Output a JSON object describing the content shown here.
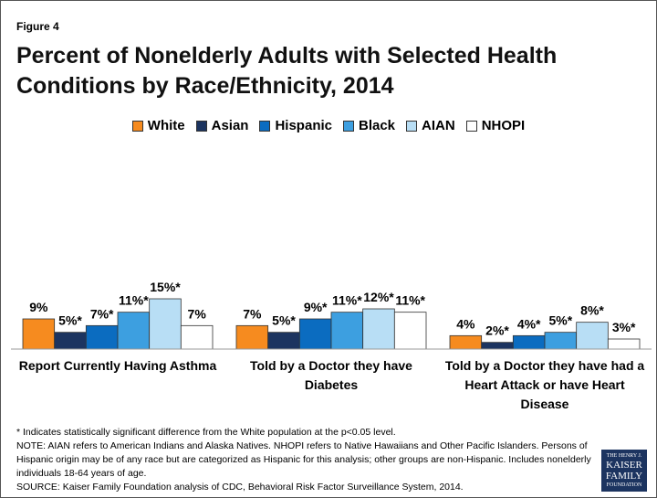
{
  "chart_data": {
    "type": "bar",
    "figure_label": "Figure 4",
    "title": "Percent of Nonelderly Adults with Selected Health Conditions by Race/Ethnicity, 2014",
    "categories": [
      "Report Currently Having Asthma",
      "Told by a Doctor they have Diabetes",
      "Told by a Doctor they have had a Heart Attack or have Heart Disease"
    ],
    "series": [
      {
        "name": "White",
        "color": "#f68b1f",
        "values": [
          9,
          7,
          4
        ],
        "value_labels": [
          "9%",
          "7%",
          "4%"
        ]
      },
      {
        "name": "Asian",
        "color": "#1c3460",
        "values": [
          5,
          5,
          2
        ],
        "value_labels": [
          "5%*",
          "5%*",
          "2%*"
        ]
      },
      {
        "name": "Hispanic",
        "color": "#0b6cc0",
        "values": [
          7,
          9,
          4
        ],
        "value_labels": [
          "7%*",
          "9%*",
          "4%*"
        ]
      },
      {
        "name": "Black",
        "color": "#3d9fe0",
        "values": [
          11,
          11,
          5
        ],
        "value_labels": [
          "11%*",
          "11%*",
          "5%*"
        ]
      },
      {
        "name": "AIAN",
        "color": "#b8def5",
        "values": [
          15,
          12,
          8
        ],
        "value_labels": [
          "15%*",
          "12%*",
          "8%*"
        ]
      },
      {
        "name": "NHOPI",
        "color": "#ffffff",
        "values": [
          7,
          11,
          3
        ],
        "value_labels": [
          "7%",
          "11%*",
          "3%*"
        ]
      }
    ],
    "ylim": [
      0,
      60
    ],
    "footnotes": [
      "* Indicates statistically significant difference from the White population at the p<0.05 level.",
      "NOTE: AIAN refers to American Indians and Alaska Natives. NHOPI refers to Native Hawaiians and Other Pacific Islanders. Persons of Hispanic origin may be of any race but are categorized as Hispanic for this analysis; other groups are non-Hispanic. Includes nonelderly individuals 18-64 years of age.",
      "SOURCE: Kaiser Family Foundation analysis of CDC, Behavioral Risk Factor Surveillance System, 2014."
    ],
    "logo": [
      "THE HENRY J.",
      "KAISER",
      "FAMILY",
      "FOUNDATION"
    ]
  }
}
